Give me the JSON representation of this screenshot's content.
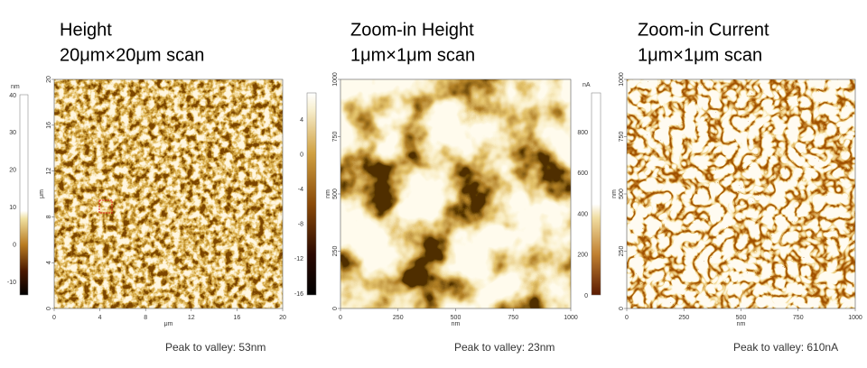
{
  "panels": [
    {
      "title": [
        "Height",
        "20μm×20μm scan"
      ],
      "colorbar": {
        "unit": "nm",
        "ticks": [
          40,
          30,
          20,
          10,
          0,
          -10
        ]
      },
      "y_axis": {
        "unit": "μm",
        "ticks": [
          20,
          16,
          12,
          8,
          4,
          0
        ]
      },
      "x_axis": {
        "unit": "μm",
        "ticks": [
          0,
          4,
          8,
          12,
          16,
          20
        ]
      },
      "caption": "Peak to valley: 53nm"
    },
    {
      "title": [
        "Zoom-in Height",
        "1μm×1μm scan"
      ],
      "colorbar": {
        "ticks": [
          4,
          0,
          -4,
          -8,
          -12,
          -16
        ]
      },
      "y_axis": {
        "unit": "nm",
        "ticks": [
          1000,
          750,
          500,
          250,
          0
        ]
      },
      "x_axis": {
        "unit": "nm",
        "ticks": [
          0,
          250,
          500,
          750,
          1000
        ]
      },
      "caption": "Peak to valley: 23nm"
    },
    {
      "title": [
        "Zoom-in Current",
        "1μm×1μm scan"
      ],
      "colorbar": {
        "unit": "nA",
        "ticks": [
          800,
          600,
          400,
          200,
          0
        ]
      },
      "y_axis": {
        "unit": "nm",
        "ticks": [
          1000,
          750,
          500,
          250,
          0
        ]
      },
      "x_axis": {
        "unit": "nm",
        "ticks": [
          0,
          250,
          500,
          750,
          1000
        ]
      },
      "caption": "Peak to valley: 610nA"
    }
  ]
}
